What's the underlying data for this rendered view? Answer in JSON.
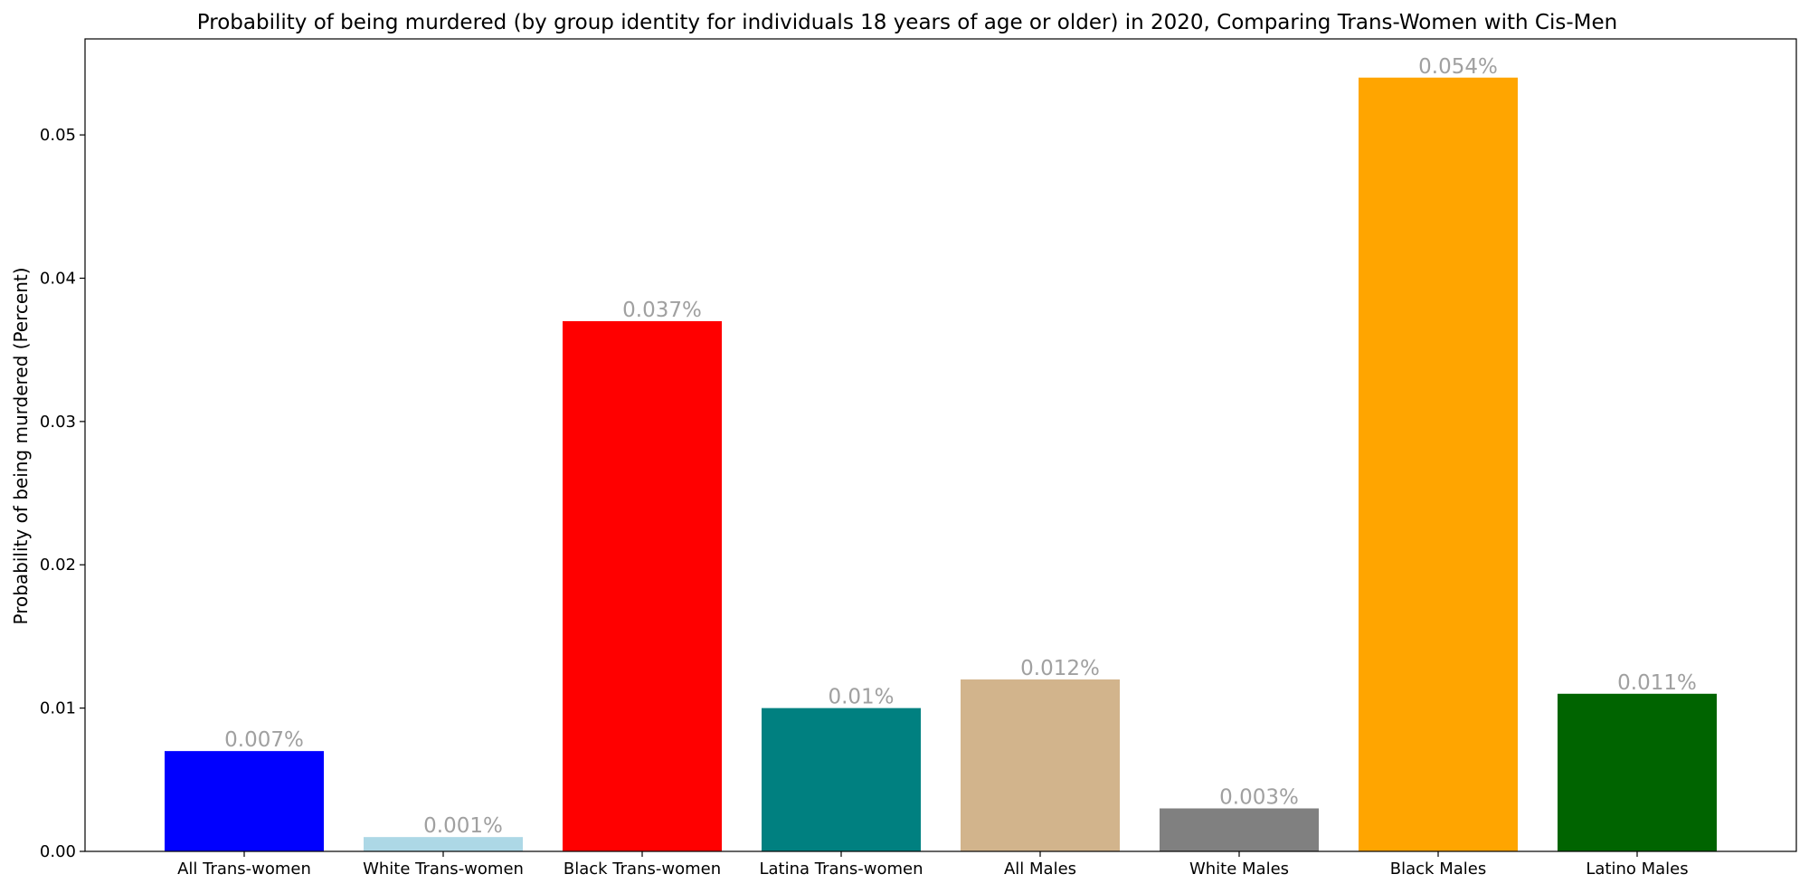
{
  "chart_data": {
    "type": "bar",
    "title": "Probability of being murdered (by group identity for individuals 18 years of age or older) in 2020, Comparing Trans-Women with Cis-Men",
    "xlabel": "",
    "ylabel": "Probability of being murdered (Percent)",
    "categories": [
      "All Trans-women",
      "White Trans-women",
      "Black Trans-women",
      "Latina Trans-women",
      "All Males",
      "White Males",
      "Black Males",
      "Latino Males"
    ],
    "values": [
      0.007,
      0.001,
      0.037,
      0.01,
      0.012,
      0.003,
      0.054,
      0.011
    ],
    "data_labels": [
      "0.007%",
      "0.001%",
      "0.037%",
      "0.01%",
      "0.012%",
      "0.003%",
      "0.054%",
      "0.011%"
    ],
    "colors": [
      "#0000ff",
      "#add8e6",
      "#ff0000",
      "#008080",
      "#d2b48c",
      "#808080",
      "#ffa500",
      "#006400"
    ],
    "label_color": "#a0a0a0",
    "ylim": [
      0,
      0.0567
    ],
    "yticks": [
      0.0,
      0.01,
      0.02,
      0.03,
      0.04,
      0.05
    ],
    "ytick_labels": [
      "0.00",
      "0.01",
      "0.02",
      "0.03",
      "0.04",
      "0.05"
    ],
    "grid": false,
    "legend": "none"
  }
}
